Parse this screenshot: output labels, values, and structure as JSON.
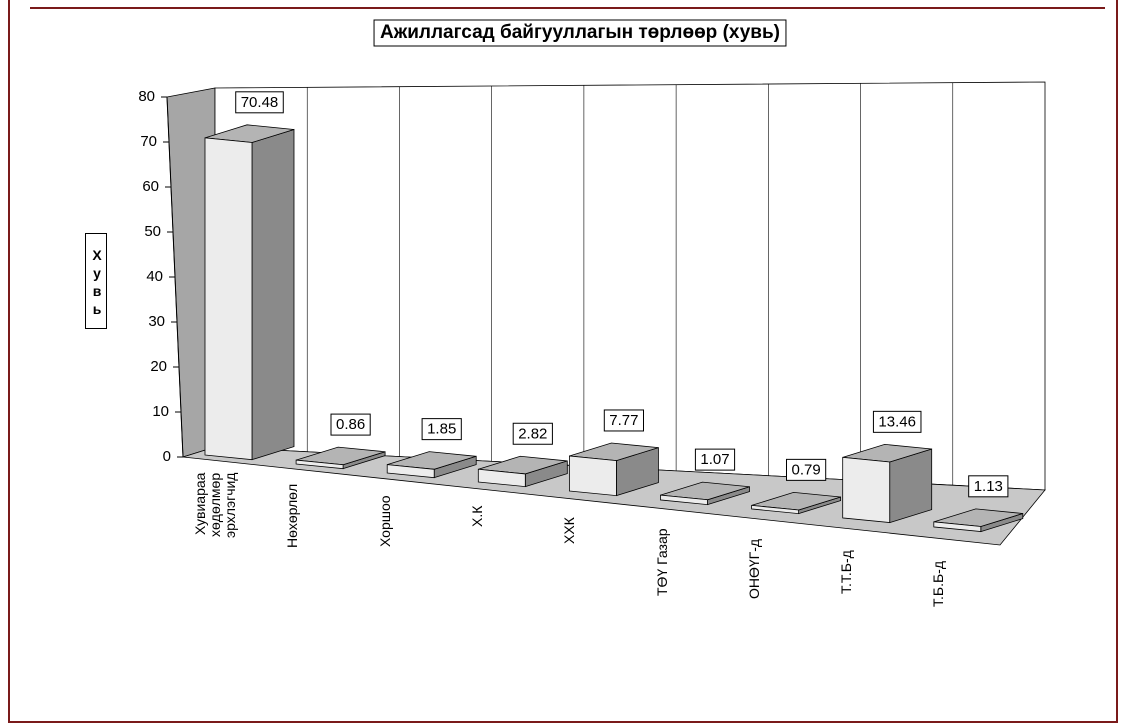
{
  "chart_data": {
    "type": "bar3d",
    "title": "Ажиллагсад байгууллагын төрлөөр (хувь)",
    "y_label": "Хувь",
    "categories": [
      "Хувиараа хөдөлмөр эрхлэгчид",
      "Нөхөрлөл",
      "Хоршоо",
      "Х.К",
      "ХХК",
      "ТӨҮ Газар",
      "ОНӨҮГ-д",
      "Т.Т.Б-д",
      "Т.Б.Б-д"
    ],
    "values": [
      70.48,
      0.86,
      1.85,
      2.82,
      7.77,
      1.07,
      0.79,
      13.46,
      1.13
    ],
    "colors": {
      "front": "#ececec",
      "side": "#8a8a8a",
      "top": "#b4b4b4"
    },
    "ylim": [
      0,
      80
    ],
    "yticks": [
      0,
      10,
      20,
      30,
      40,
      50,
      60,
      70,
      80
    ],
    "grid": false
  }
}
